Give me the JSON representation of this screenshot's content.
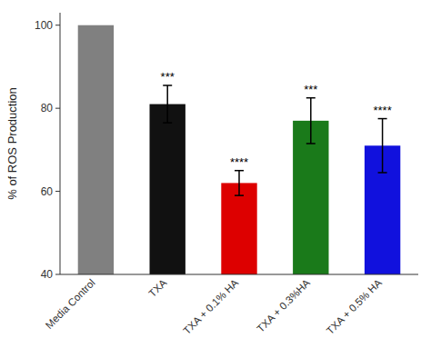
{
  "chart_data": {
    "type": "bar",
    "categories": [
      "Media Control",
      "TXA",
      "TXA + 0.1% HA",
      "TXA + 0.3%HA",
      "TXA + 0.5% HA"
    ],
    "values": [
      100.0,
      81.0,
      62.0,
      77.0,
      71.0
    ],
    "errors": [
      0.0,
      4.5,
      3.0,
      5.5,
      6.5
    ],
    "colors": [
      "#808080",
      "#111111",
      "#dd0000",
      "#1a7a1a",
      "#1111dd"
    ],
    "annotations": [
      null,
      "***",
      "****",
      "***",
      "****"
    ],
    "ylabel": "% of ROS Production",
    "ylim": [
      40,
      103
    ],
    "yticks": [
      40,
      60,
      80,
      100
    ],
    "grid": false
  }
}
